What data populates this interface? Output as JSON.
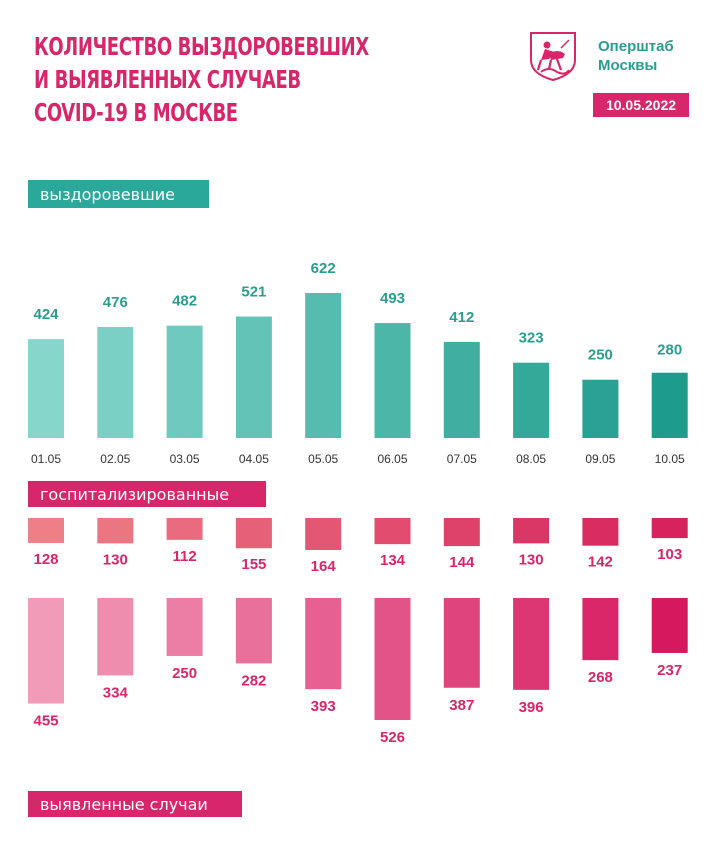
{
  "title_lines": [
    "КОЛИЧЕСТВО ВЫЗДОРОВЕВШИХ",
    "И ВЫЯВЛЕННЫХ СЛУЧАЕВ",
    "COVID-19 В МОСКВЕ"
  ],
  "brand": {
    "line1": "Оперштаб",
    "line2": "Москвы",
    "logo": "moscow-coat-of-arms-icon"
  },
  "date": "10.05.2022",
  "colors": {
    "teal": "#2aa99a",
    "magenta": "#d7266a"
  },
  "chart_data": {
    "type": "bar",
    "title": "КОЛИЧЕСТВО ВЫЗДОРОВЕВШИХ И ВЫЯВЛЕННЫХ СЛУЧАЕВ COVID-19 В МОСКВЕ",
    "categories": [
      "01.05",
      "02.05",
      "03.05",
      "04.05",
      "05.05",
      "06.05",
      "07.05",
      "08.05",
      "09.05",
      "10.05"
    ],
    "series": [
      {
        "name": "выздоровевшие",
        "values": [
          424,
          476,
          482,
          521,
          622,
          493,
          412,
          323,
          250,
          280
        ]
      },
      {
        "name": "госпитализированные",
        "values": [
          128,
          130,
          112,
          155,
          164,
          134,
          144,
          130,
          142,
          103
        ]
      },
      {
        "name": "выявленные случаи",
        "values": [
          455,
          334,
          250,
          282,
          393,
          526,
          387,
          396,
          268,
          237
        ]
      }
    ]
  }
}
